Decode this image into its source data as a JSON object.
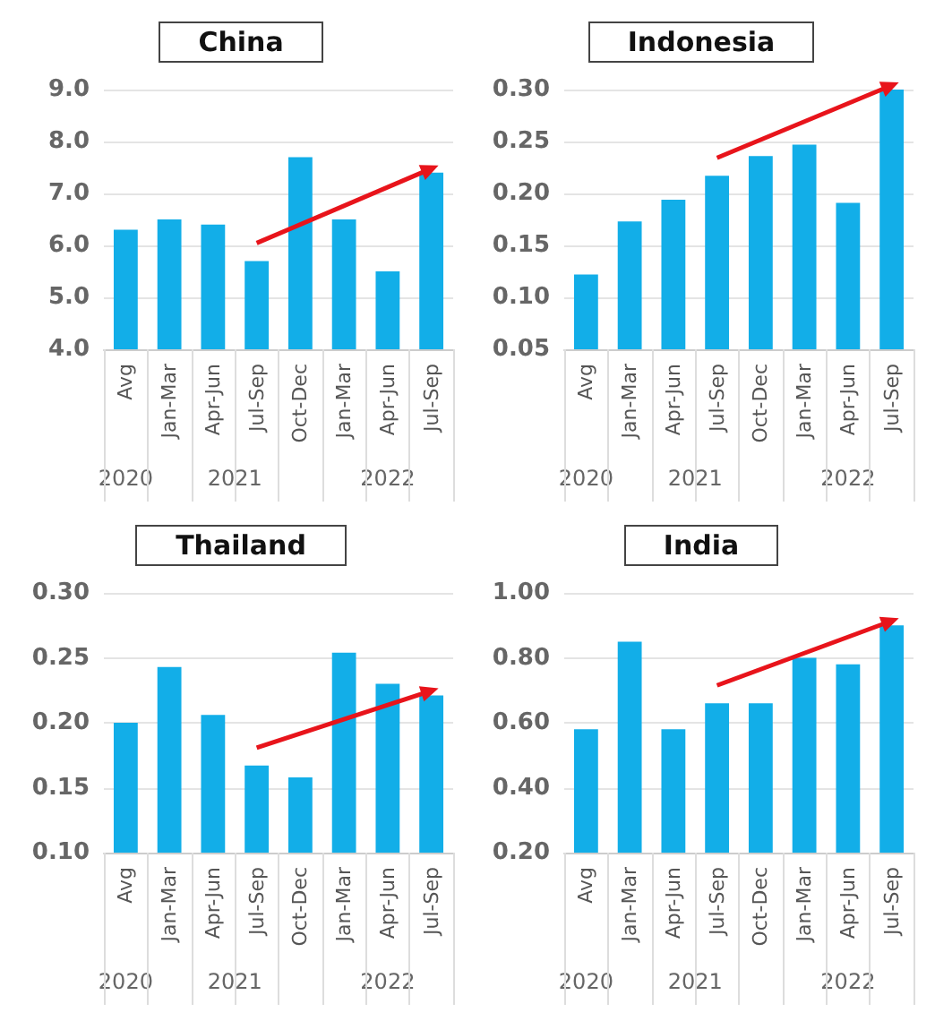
{
  "chart_data": [
    {
      "type": "bar",
      "title": "China",
      "categories": [
        "Avg",
        "Jan-Mar",
        "Apr-Jun",
        "Jul-Sep",
        "Oct-Dec",
        "Jan-Mar",
        "Apr-Jun",
        "Jul-Sep"
      ],
      "values": [
        6.3,
        6.5,
        6.4,
        5.7,
        7.7,
        6.5,
        5.5,
        7.4
      ],
      "color": "#12aee8",
      "ylim": [
        4,
        9
      ],
      "yticks": [
        {
          "value": 4,
          "label": "4.0"
        },
        {
          "value": 5,
          "label": "5.0"
        },
        {
          "value": 6,
          "label": "6.0"
        },
        {
          "value": 7,
          "label": "7.0"
        },
        {
          "value": 8,
          "label": "8.0"
        },
        {
          "value": 9,
          "label": "9.0"
        }
      ],
      "grid": "y",
      "annotations": [
        "2020",
        "2021",
        "2022"
      ]
    },
    {
      "type": "bar",
      "title": "Indonesia",
      "categories": [
        "Avg",
        "Jan-Mar",
        "Apr-Jun",
        "Jul-Sep",
        "Oct-Dec",
        "Jan-Mar",
        "Apr-Jun",
        "Jul-Sep"
      ],
      "values": [
        0.122,
        0.173,
        0.194,
        0.217,
        0.236,
        0.247,
        0.191,
        0.3
      ],
      "color": "#12aee8",
      "ylim": [
        0.05,
        0.3
      ],
      "yticks": [
        {
          "value": 0.05,
          "label": "0.05"
        },
        {
          "value": 0.1,
          "label": "0.10"
        },
        {
          "value": 0.15,
          "label": "0.15"
        },
        {
          "value": 0.2,
          "label": "0.20"
        },
        {
          "value": 0.25,
          "label": "0.25"
        },
        {
          "value": 0.3,
          "label": "0.30"
        }
      ],
      "grid": "y",
      "annotations": [
        "2020",
        "2021",
        "2022"
      ]
    },
    {
      "type": "bar",
      "title": "Thailand",
      "categories": [
        "Avg",
        "Jan-Mar",
        "Apr-Jun",
        "Jul-Sep",
        "Oct-Dec",
        "Jan-Mar",
        "Apr-Jun",
        "Jul-Sep"
      ],
      "values": [
        0.2,
        0.243,
        0.206,
        0.167,
        0.158,
        0.254,
        0.23,
        0.221
      ],
      "color": "#12aee8",
      "ylim": [
        0.1,
        0.3
      ],
      "yticks": [
        {
          "value": 0.1,
          "label": "0.10"
        },
        {
          "value": 0.15,
          "label": "0.15"
        },
        {
          "value": 0.2,
          "label": "0.20"
        },
        {
          "value": 0.25,
          "label": "0.25"
        },
        {
          "value": 0.3,
          "label": "0.30"
        }
      ],
      "grid": "y",
      "annotations": [
        "2020",
        "2021",
        "2022"
      ]
    },
    {
      "type": "bar",
      "title": "India",
      "categories": [
        "Avg",
        "Jan-Mar",
        "Apr-Jun",
        "Jul-Sep",
        "Oct-Dec",
        "Jan-Mar",
        "Apr-Jun",
        "Jul-Sep"
      ],
      "values": [
        0.58,
        0.85,
        0.58,
        0.66,
        0.66,
        0.8,
        0.78,
        0.9
      ],
      "color": "#12aee8",
      "ylim": [
        0.2,
        1
      ],
      "yticks": [
        {
          "value": 0.2,
          "label": "0.20"
        },
        {
          "value": 0.4,
          "label": "0.40"
        },
        {
          "value": 0.6,
          "label": "0.60"
        },
        {
          "value": 0.8,
          "label": "0.80"
        },
        {
          "value": 1,
          "label": "1.00"
        }
      ],
      "grid": "y",
      "annotations": [
        "2020",
        "2021",
        "2022"
      ]
    }
  ]
}
